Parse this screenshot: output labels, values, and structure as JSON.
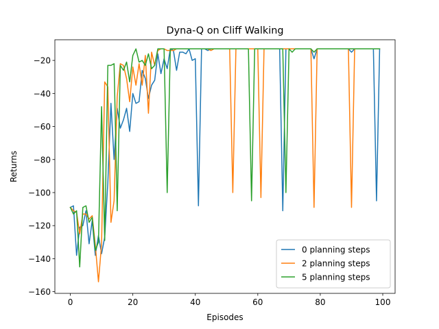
{
  "chart_data": {
    "type": "line",
    "title": "Dyna-Q on Cliff Walking",
    "xlabel": "Episodes",
    "ylabel": "Returns",
    "xlim": [
      -4.95,
      103.95
    ],
    "ylim": [
      -161,
      -7.5
    ],
    "xticks": [
      0,
      20,
      40,
      60,
      80,
      100
    ],
    "yticks": [
      -160,
      -140,
      -120,
      -100,
      -80,
      -60,
      -40,
      -20
    ],
    "grid": false,
    "legend_position": "lower-right",
    "x": [
      0,
      1,
      2,
      3,
      4,
      5,
      6,
      7,
      8,
      9,
      10,
      11,
      12,
      13,
      14,
      15,
      16,
      17,
      18,
      19,
      20,
      21,
      22,
      23,
      24,
      25,
      26,
      27,
      28,
      29,
      30,
      31,
      32,
      33,
      34,
      35,
      36,
      37,
      38,
      39,
      40,
      41,
      42,
      43,
      44,
      45,
      46,
      47,
      48,
      49,
      50,
      51,
      52,
      53,
      54,
      55,
      56,
      57,
      58,
      59,
      60,
      61,
      62,
      63,
      64,
      65,
      66,
      67,
      68,
      69,
      70,
      71,
      72,
      73,
      74,
      75,
      76,
      77,
      78,
      79,
      80,
      81,
      82,
      83,
      84,
      85,
      86,
      87,
      88,
      89,
      90,
      91,
      92,
      93,
      94,
      95,
      96,
      97,
      98,
      99
    ],
    "series": [
      {
        "name": "0 planning steps",
        "color": "#1f77b4",
        "values": [
          -109,
          -108,
          -138,
          -121,
          -120,
          -111,
          -131,
          -117,
          -138,
          -126,
          -137,
          -127,
          -94,
          -46,
          -80,
          -49,
          -61,
          -56,
          -49,
          -63,
          -40,
          -46,
          -45,
          -26,
          -31,
          -43,
          -35,
          -32,
          -16,
          -28,
          -19,
          -25,
          -13,
          -14,
          -26,
          -15,
          -15,
          -16,
          -13,
          -20,
          -19,
          -108,
          -13,
          -13,
          -14,
          -13,
          -13,
          -13,
          -13,
          -13,
          -13,
          -13,
          -13,
          -13,
          -13,
          -13,
          -13,
          -13,
          -13,
          -13,
          -13,
          -13,
          -13,
          -13,
          -13,
          -13,
          -13,
          -13,
          -111,
          -13,
          -13,
          -13,
          -13,
          -13,
          -13,
          -13,
          -13,
          -13,
          -19,
          -13,
          -13,
          -13,
          -13,
          -13,
          -13,
          -13,
          -13,
          -13,
          -13,
          -13,
          -15,
          -13,
          -13,
          -13,
          -13,
          -13,
          -13,
          -13,
          -105,
          -13
        ]
      },
      {
        "name": "2 planning steps",
        "color": "#ff7f0e",
        "values": [
          -109,
          -111,
          -112,
          -125,
          -113,
          -113,
          -116,
          -114,
          -132,
          -154,
          -131,
          -33,
          -36,
          -118,
          -105,
          -42,
          -22,
          -23,
          -31,
          -45,
          -24,
          -35,
          -22,
          -35,
          -17,
          -52,
          -15,
          -23,
          -14,
          -13,
          -13,
          -14,
          -14,
          -14,
          -13,
          -13,
          -13,
          -13,
          -13,
          -13,
          -13,
          -13,
          -13,
          -13,
          -13,
          -14,
          -13,
          -13,
          -13,
          -13,
          -13,
          -13,
          -100,
          -13,
          -13,
          -13,
          -13,
          -13,
          -13,
          -13,
          -13,
          -103,
          -13,
          -13,
          -13,
          -13,
          -13,
          -13,
          -13,
          -13,
          -13,
          -13,
          -13,
          -13,
          -13,
          -13,
          -13,
          -13,
          -109,
          -13,
          -13,
          -13,
          -13,
          -13,
          -13,
          -13,
          -13,
          -13,
          -13,
          -13,
          -109,
          -13,
          -13,
          -13,
          -13,
          -13,
          -13,
          -13,
          -13,
          -13
        ]
      },
      {
        "name": "5 planning steps",
        "color": "#2ca02c",
        "values": [
          -109,
          -113,
          -111,
          -145,
          -109,
          -108,
          -118,
          -115,
          -135,
          -130,
          -48,
          -129,
          -23,
          -23,
          -22,
          -111,
          -23,
          -26,
          -21,
          -33,
          -17,
          -13,
          -21,
          -20,
          -23,
          -16,
          -25,
          -23,
          -13,
          -13,
          -13,
          -100,
          -13,
          -13,
          -13,
          -13,
          -13,
          -13,
          -13,
          -13,
          -13,
          -13,
          -13,
          -13,
          -13,
          -13,
          -13,
          -13,
          -13,
          -13,
          -13,
          -13,
          -13,
          -13,
          -13,
          -13,
          -13,
          -13,
          -105,
          -13,
          -13,
          -13,
          -13,
          -13,
          -13,
          -13,
          -13,
          -13,
          -13,
          -100,
          -13,
          -15,
          -13,
          -13,
          -13,
          -13,
          -13,
          -13,
          -15,
          -13,
          -13,
          -13,
          -13,
          -13,
          -13,
          -13,
          -13,
          -13,
          -13,
          -13,
          -13,
          -13,
          -13,
          -13,
          -13,
          -13,
          -13,
          -13,
          -13,
          -13
        ]
      }
    ]
  }
}
